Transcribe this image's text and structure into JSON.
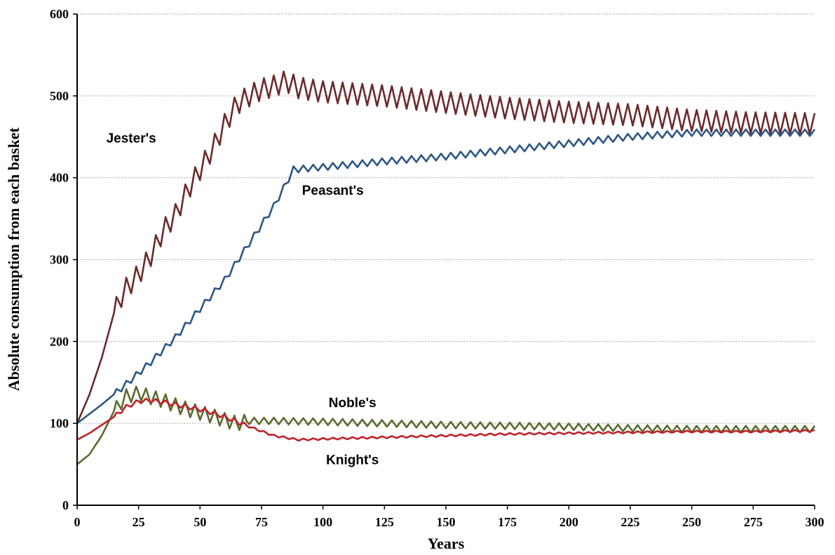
{
  "chart_data": {
    "type": "line",
    "title": "",
    "xlabel": "Years",
    "ylabel": "Absolute consumption from each basket",
    "xlim": [
      0,
      300
    ],
    "ylim": [
      0,
      600
    ],
    "xticks": [
      "0",
      "25",
      "50",
      "75",
      "100",
      "125",
      "150",
      "175",
      "200",
      "225",
      "250",
      "275",
      "300"
    ],
    "yticks": [
      "0",
      "100",
      "200",
      "300",
      "400",
      "500",
      "600"
    ],
    "grid": "horizontal dotted",
    "legend": "none",
    "series": [
      {
        "name": "Jester's",
        "color": "#6b2a2a",
        "x": [
          0,
          5,
          10,
          15,
          18,
          20,
          25,
          30,
          35,
          40,
          45,
          50,
          55,
          60,
          65,
          70,
          75,
          80,
          85,
          90,
          100,
          125,
          150,
          175,
          200,
          225,
          250,
          275,
          300
        ],
        "values": [
          100,
          135,
          180,
          235,
          255,
          265,
          282,
          305,
          335,
          355,
          385,
          410,
          435,
          465,
          490,
          500,
          508,
          512,
          518,
          510,
          505,
          500,
          492,
          485,
          480,
          477,
          470,
          467,
          466
        ]
      },
      {
        "name": "Peasant's",
        "color": "#2c5685",
        "x": [
          0,
          10,
          20,
          30,
          40,
          50,
          60,
          70,
          80,
          88,
          100,
          125,
          150,
          175,
          200,
          225,
          250,
          275,
          300
        ],
        "values": [
          100,
          123,
          148,
          175,
          205,
          240,
          275,
          320,
          365,
          410,
          413,
          420,
          426,
          434,
          442,
          450,
          455,
          455,
          455
        ]
      },
      {
        "name": "Noble's",
        "color": "#5a6b2e",
        "x": [
          0,
          5,
          10,
          15,
          20,
          25,
          30,
          35,
          40,
          45,
          50,
          55,
          60,
          65,
          70,
          80,
          100,
          125,
          150,
          175,
          200,
          225,
          250,
          275,
          300
        ],
        "values": [
          50,
          62,
          85,
          115,
          133,
          137,
          132,
          128,
          122,
          117,
          113,
          109,
          104,
          100,
          103,
          103,
          102,
          100,
          98,
          97,
          96,
          94,
          93,
          93,
          93
        ]
      },
      {
        "name": "Knight's",
        "color": "#c0222a",
        "x": [
          0,
          5,
          10,
          15,
          20,
          25,
          30,
          35,
          40,
          45,
          50,
          55,
          60,
          65,
          70,
          80,
          90,
          100,
          125,
          150,
          175,
          200,
          225,
          250,
          275,
          300
        ],
        "values": [
          80,
          88,
          98,
          108,
          120,
          127,
          128,
          126,
          123,
          120,
          117,
          113,
          108,
          102,
          96,
          85,
          80,
          81,
          83,
          85,
          87,
          88,
          89,
          90,
          90,
          91
        ]
      }
    ],
    "annotations": [
      {
        "text": "Jester's",
        "x": 22,
        "y": 443
      },
      {
        "text": "Peasant's",
        "x": 104,
        "y": 379
      },
      {
        "text": "Noble's",
        "x": 112,
        "y": 120
      },
      {
        "text": "Knight's",
        "x": 112,
        "y": 50
      }
    ]
  }
}
